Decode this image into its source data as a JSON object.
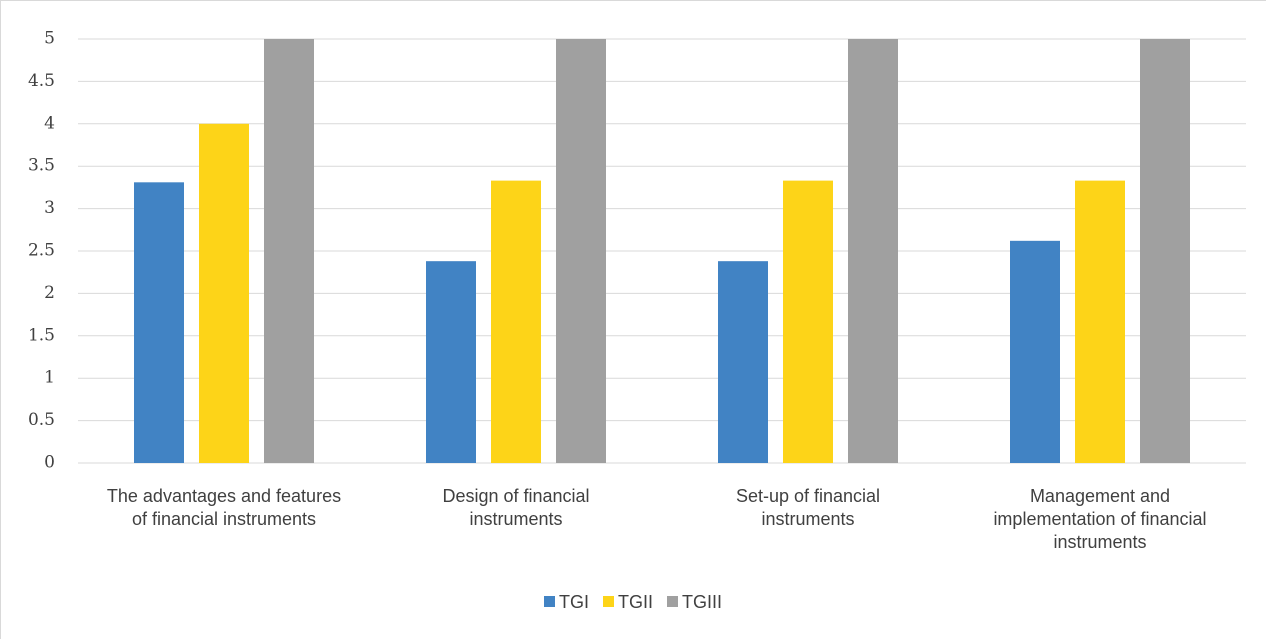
{
  "chart_data": {
    "type": "bar",
    "categories": [
      "The advantages and features\nof financial instruments",
      "Design of financial\ninstruments",
      "Set-up of financial\ninstruments",
      "Management and\nimplementation of financial\ninstruments"
    ],
    "series": [
      {
        "name": "TGI",
        "color": "#4183c4",
        "values": [
          3.31,
          2.38,
          2.38,
          2.62
        ]
      },
      {
        "name": "TGII",
        "color": "#fdd418",
        "values": [
          4,
          3.33,
          3.33,
          3.33
        ]
      },
      {
        "name": "TGIII",
        "color": "#a0a0a0",
        "values": [
          5,
          5,
          5,
          5
        ]
      }
    ],
    "ylim": [
      0,
      5
    ],
    "yticks": [
      0,
      0.5,
      1,
      1.5,
      2,
      2.5,
      3,
      3.5,
      4,
      4.5,
      5
    ],
    "grid": true,
    "legend": "bottom"
  }
}
